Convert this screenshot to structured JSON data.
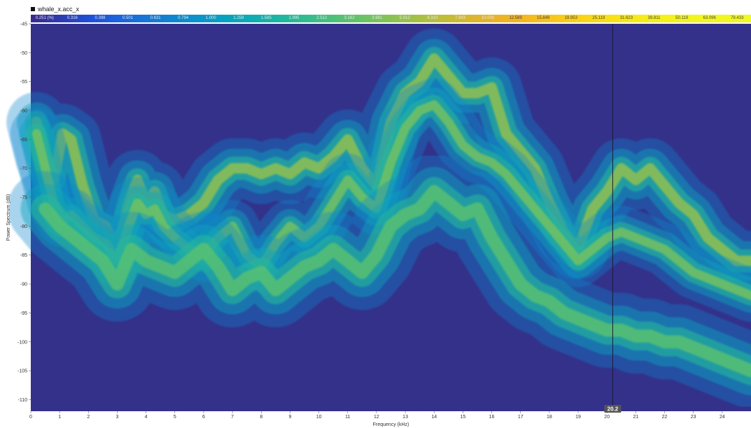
{
  "legend": {
    "channel": "whale_x.acc_x"
  },
  "colorbar": {
    "ticks": [
      "0.251 (%)",
      "0.316",
      "0.398",
      "0.501",
      "0.631",
      "0.794",
      "1.000",
      "1.259",
      "1.585",
      "1.995",
      "2.512",
      "3.162",
      "3.981",
      "5.012",
      "6.310",
      "7.943",
      "10.000",
      "12.589",
      "15.849",
      "19.953",
      "25.119",
      "31.623",
      "39.811",
      "50.119",
      "63.096",
      "79.433"
    ],
    "colors": [
      "#3a2a8a",
      "#2e3bb0",
      "#1f4fd6",
      "#1c63dc",
      "#1776d6",
      "#0f87cf",
      "#0a97c8",
      "#08a5bd",
      "#12b0ae",
      "#25b89b",
      "#3fbe86",
      "#5bc270",
      "#79c35d",
      "#98c24c",
      "#b6bf3d",
      "#d2b931",
      "#e8b229",
      "#f4b521",
      "#f8c41b",
      "#f9d218",
      "#f8df16",
      "#f6ea16",
      "#f4f218",
      "#f2f51c",
      "#f0f720",
      "#f0f921"
    ]
  },
  "cursor": {
    "value": "20.2"
  },
  "chart_data": {
    "type": "heatmap",
    "title": "",
    "xlabel": "Frequency (kHz)",
    "ylabel": "Power Spectrum (dB)",
    "xlim": [
      0,
      25
    ],
    "ylim": [
      -112,
      -45
    ],
    "x_ticks": [
      0,
      1,
      2,
      3,
      4,
      5,
      6,
      7,
      8,
      9,
      10,
      11,
      12,
      13,
      14,
      15,
      16,
      17,
      18,
      19,
      20,
      21,
      22,
      23,
      24
    ],
    "y_ticks": [
      -45,
      -50,
      -55,
      -60,
      -65,
      -70,
      -75,
      -80,
      -85,
      -90,
      -95,
      -100,
      -105,
      -110
    ],
    "background_color": "#33318a",
    "cursor_x": 20.2,
    "bands": [
      {
        "name": "",
        "x": [
          0.2,
          0.5,
          0.8,
          1.1,
          1.4,
          1.8,
          2.2,
          2.6,
          3.0,
          3.4,
          3.7,
          4.0,
          4.3,
          4.6,
          5.0,
          5.5,
          6.0,
          6.5,
          7.0,
          7.5,
          8.0,
          8.5,
          9.0,
          9.5,
          10.0,
          10.5,
          11.0,
          11.5,
          12.0,
          12.5,
          13.0,
          13.5,
          14.0,
          14.5,
          15.0,
          15.5,
          16.0,
          16.5,
          17.0,
          17.5,
          18.0,
          18.5,
          19.0,
          19.5,
          20.0,
          20.5,
          21.0,
          21.5,
          22.0,
          22.5,
          23.0,
          23.5,
          24.0,
          24.5,
          25.0
        ],
        "y": [
          -62,
          -68,
          -72,
          -64,
          -65,
          -73,
          -79,
          -80,
          -84,
          -76,
          -72,
          -76,
          -74,
          -78,
          -79,
          -78,
          -76,
          -72,
          -70,
          -70,
          -71,
          -70,
          -71,
          -69,
          -70,
          -68,
          -65,
          -70,
          -73,
          -62,
          -57,
          -55,
          -51,
          -54,
          -57,
          -57,
          -56,
          -64,
          -67,
          -70,
          -76,
          -81,
          -84,
          -77,
          -74,
          -70,
          -72,
          -70,
          -73,
          -76,
          -78,
          -82,
          -84,
          -86,
          -86
        ],
        "width": 4,
        "intensity": 0.8
      },
      {
        "name": "",
        "x": [
          0.2,
          0.5,
          0.8,
          1.1,
          1.4,
          1.8,
          2.2,
          2.6,
          3.0,
          3.4,
          3.7,
          4.0,
          4.3,
          4.6,
          5.0,
          5.5,
          6.0,
          6.5,
          7.0,
          7.5,
          8.0,
          8.5,
          9.0,
          9.5,
          10.0,
          10.5,
          11.0,
          11.5,
          12.0,
          12.5,
          13.0,
          13.5,
          14.0,
          14.5,
          15.0,
          15.5,
          16.0,
          16.5,
          17.0,
          17.5,
          18.0,
          18.5,
          19.0,
          19.5,
          20.0,
          20.5,
          21.0,
          21.5,
          22.0,
          22.5,
          23.0,
          23.5,
          24.0,
          24.5,
          25.0
        ],
        "y": [
          -64,
          -70,
          -76,
          -79,
          -78,
          -80,
          -82,
          -83,
          -86,
          -80,
          -76,
          -78,
          -77,
          -80,
          -82,
          -84,
          -85,
          -82,
          -80,
          -85,
          -87,
          -83,
          -80,
          -82,
          -80,
          -76,
          -72,
          -75,
          -77,
          -69,
          -63,
          -60,
          -59,
          -62,
          -66,
          -68,
          -69,
          -71,
          -74,
          -77,
          -80,
          -83,
          -86,
          -84,
          -82,
          -81,
          -82,
          -83,
          -84,
          -86,
          -88,
          -89,
          -90,
          -91,
          -92
        ],
        "width": 3.5,
        "intensity": 0.55
      },
      {
        "name": "",
        "x": [
          0.5,
          1.0,
          1.5,
          2.0,
          2.5,
          3.0,
          3.5,
          4.0,
          4.5,
          5.0,
          5.5,
          6.0,
          6.5,
          7.0,
          7.5,
          8.0,
          8.5,
          9.0,
          9.5,
          10.0,
          10.5,
          11.0,
          11.5,
          12.0,
          12.5,
          13.0,
          13.5,
          14.0,
          14.5,
          15.0,
          15.5,
          16.0,
          16.5,
          17.0,
          17.5,
          18.0,
          18.5,
          19.0,
          19.5,
          20.0,
          20.5,
          21.0,
          21.5,
          22.0,
          22.5,
          23.0,
          23.5,
          24.0,
          24.5,
          25.0
        ],
        "y": [
          -77,
          -80,
          -82,
          -84,
          -86,
          -90,
          -84,
          -86,
          -87,
          -88,
          -86,
          -84,
          -87,
          -91,
          -89,
          -88,
          -91,
          -89,
          -87,
          -86,
          -84,
          -86,
          -88,
          -85,
          -80,
          -78,
          -77,
          -74,
          -76,
          -78,
          -77,
          -82,
          -86,
          -90,
          -92,
          -93,
          -95,
          -96,
          -97,
          -98,
          -98,
          -99,
          -99,
          -100,
          -100,
          -101,
          -102,
          -103,
          -104,
          -105
        ],
        "width": 5,
        "intensity": 0.45
      }
    ]
  }
}
